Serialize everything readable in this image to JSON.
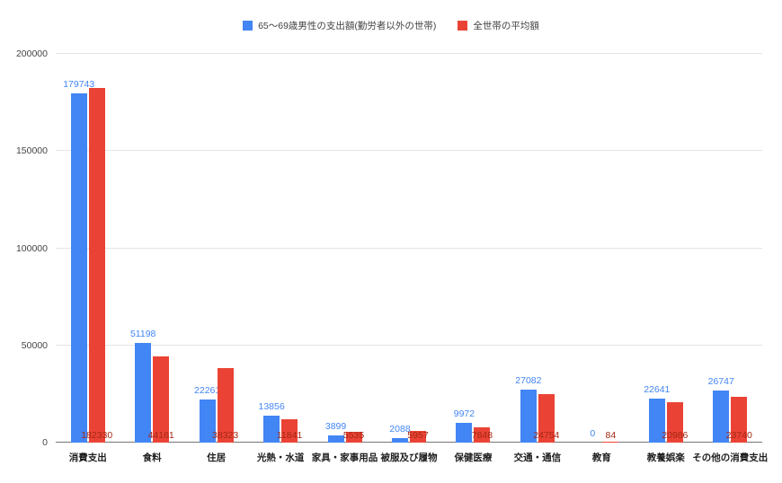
{
  "chart_data": {
    "type": "bar",
    "title": "",
    "categories": [
      "消費支出",
      "食料",
      "住居",
      "光熱・水道",
      "家具・家事用品",
      "被服及び履物",
      "保健医療",
      "交通・通信",
      "教育",
      "教養娯楽",
      "その他の消費支出"
    ],
    "series": [
      {
        "name": "65～69歳男性の支出額(勤労者以外の世帯)",
        "color": "#4285F4",
        "label_color": "#4285F4",
        "values": [
          179743,
          51198,
          22261,
          13856,
          3899,
          2088,
          9972,
          27082,
          0,
          22641,
          26747
        ]
      },
      {
        "name": "全世帯の平均額",
        "color": "#EA4335",
        "label_color": "#A52714",
        "values": [
          182330,
          44161,
          38323,
          11841,
          5535,
          5957,
          7848,
          24754,
          84,
          20986,
          23740
        ]
      }
    ],
    "ylim": [
      0,
      200000
    ],
    "yticks": [
      0,
      50000,
      100000,
      150000,
      200000
    ],
    "grid": true,
    "legend_position": "top",
    "label_position": {
      "series1": "above-bar",
      "series2": "inside-bottom"
    }
  },
  "colors": {
    "background": "#FFFFFF",
    "gridline": "#E4E4E4",
    "axis_line": "#757575",
    "axis_text": "#444444",
    "category_text": "#1F1F1F",
    "legend_text": "#424242"
  }
}
